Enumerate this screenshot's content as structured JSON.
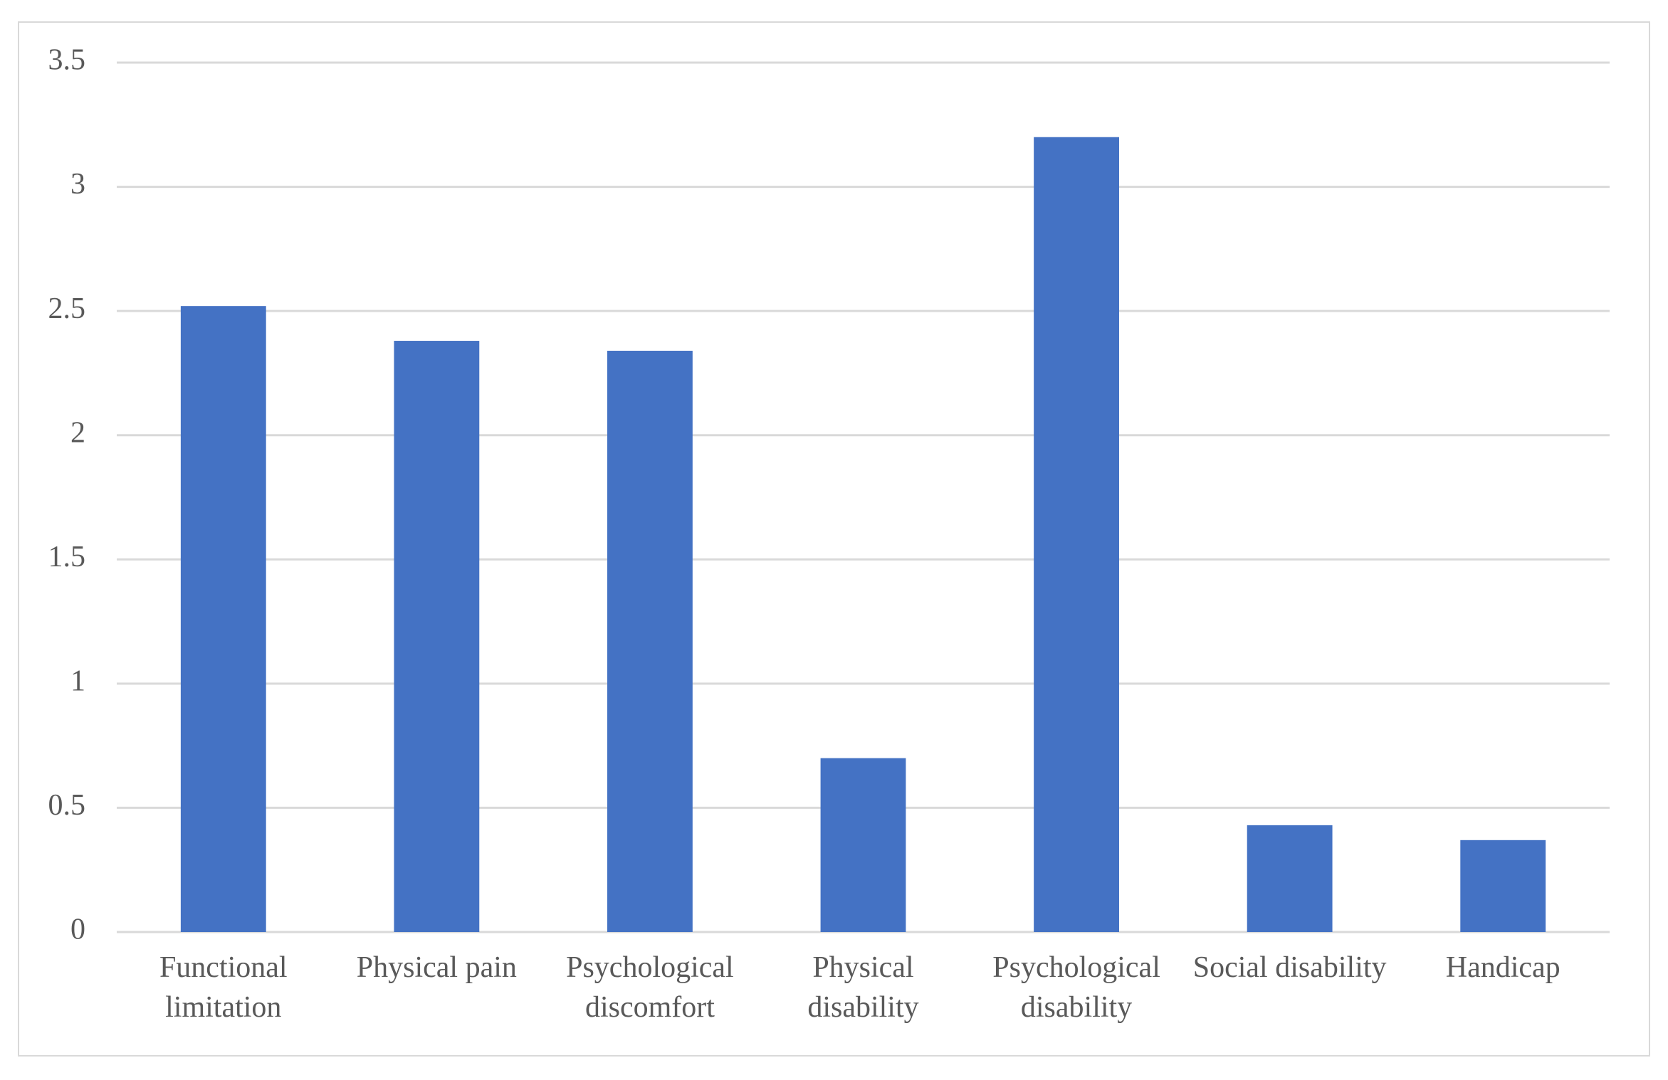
{
  "chart_data": {
    "type": "bar",
    "categories": [
      "Functional limitation",
      "Physical pain",
      "Psychological discomfort",
      "Physical disability",
      "Psychological disability",
      "Social disability",
      "Handicap"
    ],
    "values": [
      2.52,
      2.38,
      2.34,
      0.7,
      3.2,
      0.43,
      0.37
    ],
    "color": "#4472c4",
    "ylim": [
      0,
      3.5
    ],
    "yticks": [
      0,
      0.5,
      1,
      1.5,
      2,
      2.5,
      3,
      3.5
    ],
    "grid": true
  }
}
